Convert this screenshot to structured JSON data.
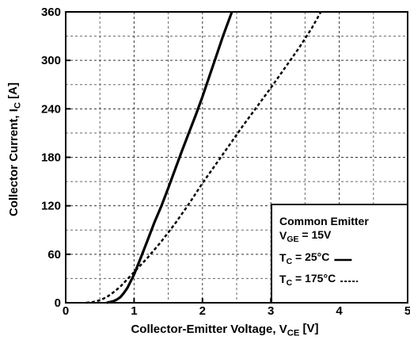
{
  "chart_data": {
    "type": "line",
    "xlabel": [
      "Collector-Emitter Voltage, V",
      "CE",
      " [V]"
    ],
    "ylabel": [
      "Collector Current, I",
      "C",
      " [A]"
    ],
    "xlim": [
      0,
      5
    ],
    "ylim": [
      0,
      360
    ],
    "xticks": [
      0,
      1,
      2,
      3,
      4,
      5
    ],
    "yticks": [
      0,
      60,
      120,
      180,
      240,
      300,
      360
    ],
    "xminorticks": [
      0.5,
      1.5,
      2.5,
      3.5,
      4.5
    ],
    "yminorticks": [
      30,
      90,
      150,
      210,
      270,
      330
    ],
    "grid": true,
    "legend": {
      "title": "Common Emitter",
      "condition": [
        "V",
        "GE",
        " = 15V"
      ],
      "corner": "lower right"
    },
    "series": [
      {
        "name": [
          "T",
          "C",
          " = 25°C"
        ],
        "color": "#000000",
        "style": "solid",
        "x": [
          0.6,
          0.65,
          0.7,
          0.75,
          0.8,
          0.85,
          0.9,
          1.0,
          1.1,
          1.2,
          1.3,
          1.4,
          1.5,
          1.6,
          1.7,
          1.8,
          1.9,
          2.0,
          2.1,
          2.2,
          2.3,
          2.43
        ],
        "values": [
          0,
          1,
          2,
          4,
          7,
          12,
          18,
          35,
          56,
          78,
          100,
          120,
          142,
          165,
          188,
          210,
          232,
          255,
          280,
          305,
          330,
          360
        ]
      },
      {
        "name": [
          "T",
          "C",
          " = 175°C"
        ],
        "color": "#000000",
        "style": "dashed",
        "x": [
          0.3,
          0.4,
          0.5,
          0.6,
          0.7,
          0.8,
          0.9,
          1.0,
          1.2,
          1.4,
          1.6,
          1.8,
          2.0,
          2.2,
          2.4,
          2.6,
          2.8,
          3.0,
          3.2,
          3.4,
          3.6,
          3.73
        ],
        "values": [
          0,
          1,
          3,
          7,
          13,
          20,
          29,
          38,
          56,
          76,
          98,
          122,
          148,
          172,
          196,
          220,
          243,
          266,
          290,
          314,
          340,
          360
        ]
      }
    ]
  }
}
